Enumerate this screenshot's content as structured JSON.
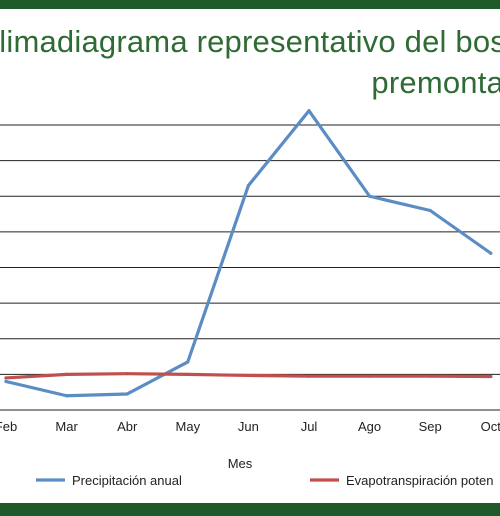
{
  "title_line1": "Climadiagrama representativo del bos",
  "title_line2": "premonta",
  "colors": {
    "frame": "#1e5a2a",
    "title": "#2f6b34",
    "grid": "#222222"
  },
  "chart_data": {
    "type": "line",
    "title": "Climadiagrama representativo del bos premonta",
    "xlabel": "Mes",
    "ylabel": "",
    "categories": [
      "Feb",
      "Mar",
      "Abr",
      "May",
      "Jun",
      "Jul",
      "Ago",
      "Sep",
      "Oct"
    ],
    "ylim": [
      0,
      8
    ],
    "grid": true,
    "legend_position": "bottom",
    "series": [
      {
        "name": "Precipitación anual",
        "color": "#5b8cc4",
        "values": [
          0.8,
          0.4,
          0.45,
          1.35,
          6.3,
          8.4,
          6.0,
          5.6,
          4.4
        ]
      },
      {
        "name": "Evapotranspiración poten",
        "color": "#c0504d",
        "values": [
          0.9,
          1.0,
          1.02,
          1.0,
          0.97,
          0.95,
          0.95,
          0.95,
          0.94
        ]
      }
    ]
  }
}
